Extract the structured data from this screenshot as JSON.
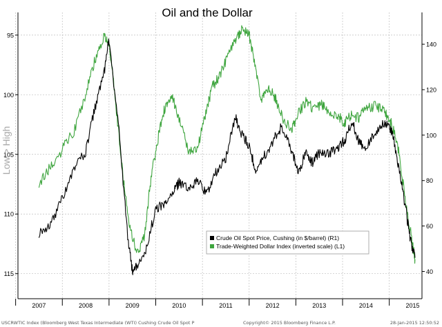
{
  "chart_data": {
    "type": "line",
    "title": "Oil and the Dollar",
    "ylabel_left": "Low > High",
    "x_categories": [
      "2007",
      "2008",
      "2009",
      "2010",
      "2011",
      "2012",
      "2013",
      "2014",
      "2015"
    ],
    "left_axis": {
      "ticks": [
        95,
        100,
        105,
        110,
        115
      ],
      "range": [
        93.1,
        117.1
      ],
      "inverted": true
    },
    "right_axis": {
      "ticks": [
        40,
        60,
        80,
        100,
        120,
        140
      ],
      "range": [
        28,
        154
      ]
    },
    "series": [
      {
        "name": "Crude Oil Spot Price, Cushing (in $/barrel) (R1)",
        "axis": "right",
        "color": "#000000",
        "x": [
          2007.0,
          2007.25,
          2007.5,
          2007.75,
          2008.0,
          2008.2,
          2008.4,
          2008.5,
          2008.7,
          2008.9,
          2009.0,
          2009.1,
          2009.3,
          2009.5,
          2009.7,
          2009.9,
          2010.0,
          2010.2,
          2010.4,
          2010.6,
          2010.8,
          2011.0,
          2011.2,
          2011.35,
          2011.5,
          2011.65,
          2011.8,
          2012.0,
          2012.2,
          2012.4,
          2012.55,
          2012.7,
          2012.85,
          2013.0,
          2013.2,
          2013.4,
          2013.55,
          2013.7,
          2013.85,
          2014.0,
          2014.2,
          2014.4,
          2014.5,
          2014.6,
          2014.75,
          2014.85,
          2014.95,
          2015.05
        ],
        "values": [
          57,
          61,
          72,
          85,
          93,
          112,
          128,
          142,
          105,
          55,
          40,
          42,
          50,
          68,
          69,
          76,
          79,
          76,
          80,
          74,
          84,
          90,
          108,
          100,
          95,
          84,
          90,
          97,
          104,
          94,
          83,
          92,
          88,
          92,
          92,
          94,
          98,
          106,
          97,
          94,
          101,
          106,
          104,
          98,
          80,
          68,
          54,
          46
        ]
      },
      {
        "name": "Trade-Weighted Dollar Index (inverted scale) (L1)",
        "axis": "left",
        "color": "#3ea53e",
        "x": [
          2007.0,
          2007.25,
          2007.5,
          2007.75,
          2008.0,
          2008.2,
          2008.4,
          2008.5,
          2008.65,
          2008.8,
          2008.95,
          2009.1,
          2009.25,
          2009.4,
          2009.55,
          2009.7,
          2009.85,
          2010.0,
          2010.2,
          2010.4,
          2010.55,
          2010.7,
          2010.85,
          2011.0,
          2011.2,
          2011.35,
          2011.5,
          2011.6,
          2011.75,
          2011.9,
          2012.05,
          2012.2,
          2012.4,
          2012.5,
          2012.7,
          2012.9,
          2013.05,
          2013.2,
          2013.4,
          2013.55,
          2013.7,
          2013.85,
          2014.0,
          2014.2,
          2014.4,
          2014.55,
          2014.7,
          2014.85,
          2015.0,
          2015.05
        ],
        "values": [
          107.4,
          106.0,
          104.6,
          103.0,
          100.0,
          97.0,
          95.0,
          95.6,
          101.0,
          106.8,
          111.2,
          113.4,
          112.0,
          107.0,
          103.6,
          101.0,
          100.0,
          102.0,
          104.6,
          104.4,
          102.0,
          99.4,
          98.6,
          97.2,
          95.5,
          94.4,
          95.0,
          97.0,
          100.4,
          99.4,
          100.2,
          101.8,
          103.0,
          102.0,
          100.6,
          101.2,
          100.8,
          101.6,
          101.8,
          102.4,
          101.6,
          102.0,
          101.0,
          101.0,
          101.4,
          102.4,
          104.8,
          109.0,
          112.6,
          113.8
        ]
      }
    ],
    "legend_position": "lower-right"
  },
  "footer": {
    "source": "USCRWTIC Index (Bloomberg West Texas Intermediate (WTI) Cushing Crude Oil Spot P",
    "copyright": "Copyright© 2015 Bloomberg Finance L.P.",
    "timestamp": "28-Jan-2015 12:50:52"
  }
}
